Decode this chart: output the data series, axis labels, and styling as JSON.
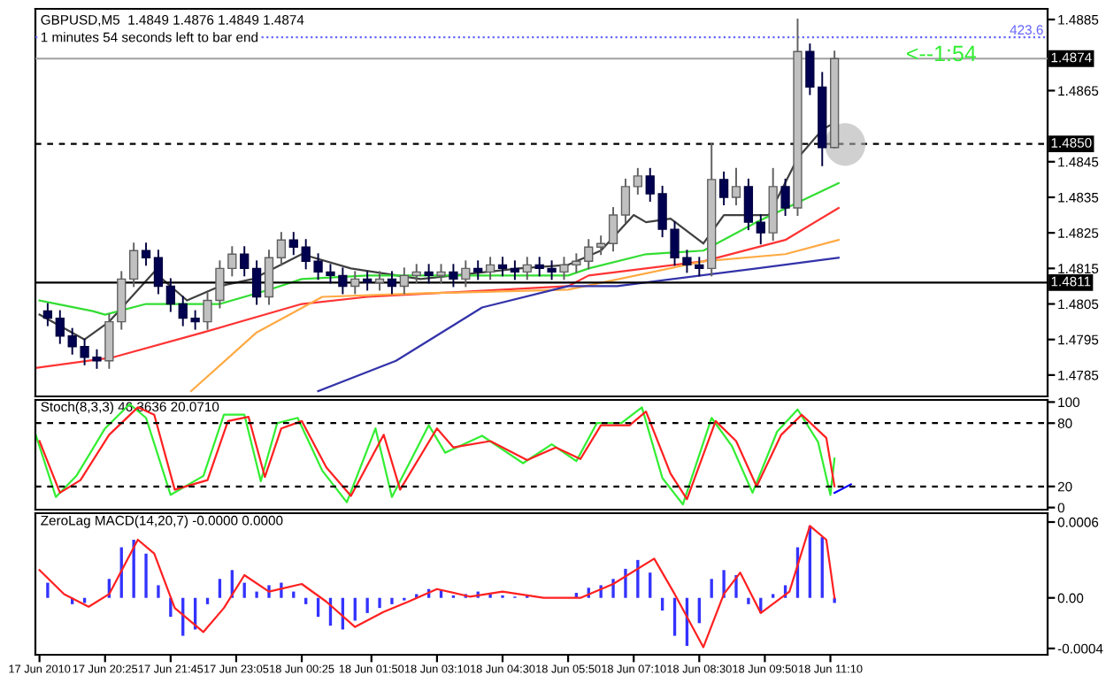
{
  "chart_data": [
    {
      "type": "candlestick",
      "title": "GBPUSD,M5  1.4849 1.4876 1.4849 1.4874",
      "subtitle": "1 minutes 54 seconds left to bar end",
      "annotations": [
        "<--1:54",
        {
          "text": "423.6",
          "x": "2010-06-18T15:30",
          "y": 1.488
        }
      ],
      "x": [
        "2010-06-17T19:15",
        "2010-06-17T19:30",
        "2010-06-17T19:45",
        "2010-06-17T20:00",
        "2010-06-17T20:15",
        "2010-06-17T20:30",
        "2010-06-17T20:45",
        "2010-06-17T21:00",
        "2010-06-17T21:15",
        "2010-06-17T21:30",
        "2010-06-17T21:45",
        "2010-06-17T22:00",
        "2010-06-17T22:15",
        "2010-06-17T22:30",
        "2010-06-17T22:45",
        "2010-06-17T23:00",
        "2010-06-17T23:15",
        "2010-06-17T23:30",
        "2010-06-17T23:45",
        "2010-06-18T00:00",
        "2010-06-18T00:15",
        "2010-06-18T00:30",
        "2010-06-18T00:45",
        "2010-06-18T01:00",
        "2010-06-18T01:15",
        "2010-06-18T01:30",
        "2010-06-18T01:45",
        "2010-06-18T02:00",
        "2010-06-18T02:15",
        "2010-06-18T02:30",
        "2010-06-18T02:45",
        "2010-06-18T03:00",
        "2010-06-18T03:15",
        "2010-06-18T03:30",
        "2010-06-18T03:45",
        "2010-06-18T04:00",
        "2010-06-18T04:15",
        "2010-06-18T04:30",
        "2010-06-18T04:45",
        "2010-06-18T05:00",
        "2010-06-18T05:15",
        "2010-06-18T05:30",
        "2010-06-18T05:45",
        "2010-06-18T06:00",
        "2010-06-18T06:15",
        "2010-06-18T06:30",
        "2010-06-18T06:45",
        "2010-06-18T07:00",
        "2010-06-18T07:15",
        "2010-06-18T07:30",
        "2010-06-18T07:45",
        "2010-06-18T08:00",
        "2010-06-18T08:15",
        "2010-06-18T08:30",
        "2010-06-18T08:45",
        "2010-06-18T09:00",
        "2010-06-18T09:15",
        "2010-06-18T09:30",
        "2010-06-18T09:45",
        "2010-06-18T10:00",
        "2010-06-18T10:15",
        "2010-06-18T10:30",
        "2010-06-18T10:45",
        "2010-06-18T11:00",
        "2010-06-18T11:15"
      ],
      "ohlc": [
        [
          1.4803,
          1.4805,
          1.4799,
          1.4801
        ],
        [
          1.4801,
          1.4803,
          1.4794,
          1.4796
        ],
        [
          1.4796,
          1.4798,
          1.4791,
          1.4793
        ],
        [
          1.4793,
          1.4795,
          1.4788,
          1.479
        ],
        [
          1.479,
          1.4792,
          1.4787,
          1.4789
        ],
        [
          1.4789,
          1.4802,
          1.4787,
          1.48
        ],
        [
          1.48,
          1.4814,
          1.4798,
          1.4812
        ],
        [
          1.4812,
          1.4822,
          1.481,
          1.482
        ],
        [
          1.482,
          1.4822,
          1.4816,
          1.4818
        ],
        [
          1.4818,
          1.482,
          1.4808,
          1.481
        ],
        [
          1.481,
          1.4812,
          1.4803,
          1.4805
        ],
        [
          1.4805,
          1.4807,
          1.4799,
          1.4801
        ],
        [
          1.4801,
          1.4803,
          1.4798,
          1.48
        ],
        [
          1.48,
          1.4808,
          1.4798,
          1.4806
        ],
        [
          1.4806,
          1.4817,
          1.4804,
          1.4815
        ],
        [
          1.4815,
          1.4821,
          1.4813,
          1.4819
        ],
        [
          1.4819,
          1.4821,
          1.4813,
          1.4815
        ],
        [
          1.4815,
          1.4817,
          1.4805,
          1.4807
        ],
        [
          1.4807,
          1.482,
          1.4805,
          1.4818
        ],
        [
          1.4818,
          1.4825,
          1.4816,
          1.4823
        ],
        [
          1.4823,
          1.4825,
          1.4819,
          1.4821
        ],
        [
          1.4821,
          1.4823,
          1.4815,
          1.4817
        ],
        [
          1.4817,
          1.4819,
          1.4812,
          1.4814
        ],
        [
          1.4814,
          1.4816,
          1.4811,
          1.4813
        ],
        [
          1.4813,
          1.4815,
          1.4808,
          1.481
        ],
        [
          1.481,
          1.4814,
          1.4808,
          1.4812
        ],
        [
          1.4812,
          1.4814,
          1.4809,
          1.4811
        ],
        [
          1.4811,
          1.4814,
          1.4809,
          1.4812
        ],
        [
          1.4812,
          1.4814,
          1.4808,
          1.481
        ],
        [
          1.481,
          1.4815,
          1.4808,
          1.4813
        ],
        [
          1.4813,
          1.4816,
          1.4811,
          1.4814
        ],
        [
          1.4814,
          1.4816,
          1.4811,
          1.4813
        ],
        [
          1.4813,
          1.4816,
          1.4811,
          1.4814
        ],
        [
          1.4814,
          1.4816,
          1.481,
          1.4812
        ],
        [
          1.4812,
          1.4817,
          1.481,
          1.4815
        ],
        [
          1.4815,
          1.4817,
          1.4812,
          1.4814
        ],
        [
          1.4814,
          1.4818,
          1.4812,
          1.4816
        ],
        [
          1.4816,
          1.4818,
          1.4813,
          1.4815
        ],
        [
          1.4815,
          1.4817,
          1.4812,
          1.4814
        ],
        [
          1.4814,
          1.4818,
          1.4812,
          1.4816
        ],
        [
          1.4816,
          1.4818,
          1.4813,
          1.4815
        ],
        [
          1.4815,
          1.4817,
          1.4812,
          1.4814
        ],
        [
          1.4814,
          1.4818,
          1.4812,
          1.4816
        ],
        [
          1.4816,
          1.4819,
          1.4814,
          1.4817
        ],
        [
          1.4817,
          1.4823,
          1.4815,
          1.4821
        ],
        [
          1.4821,
          1.4824,
          1.4819,
          1.4822
        ],
        [
          1.4822,
          1.4832,
          1.482,
          1.483
        ],
        [
          1.483,
          1.484,
          1.4828,
          1.4838
        ],
        [
          1.4838,
          1.4843,
          1.4836,
          1.4841
        ],
        [
          1.4841,
          1.4843,
          1.4834,
          1.4836
        ],
        [
          1.4836,
          1.4838,
          1.4824,
          1.4826
        ],
        [
          1.4826,
          1.4828,
          1.4816,
          1.4818
        ],
        [
          1.4818,
          1.482,
          1.4814,
          1.4816
        ],
        [
          1.4816,
          1.4818,
          1.4813,
          1.4815
        ],
        [
          1.4815,
          1.485,
          1.4813,
          1.484
        ],
        [
          1.484,
          1.4842,
          1.4833,
          1.4835
        ],
        [
          1.4835,
          1.4843,
          1.4833,
          1.4838
        ],
        [
          1.4838,
          1.484,
          1.4826,
          1.4828
        ],
        [
          1.4828,
          1.483,
          1.4822,
          1.4825
        ],
        [
          1.4825,
          1.4843,
          1.4823,
          1.4838
        ],
        [
          1.4838,
          1.484,
          1.483,
          1.4832
        ],
        [
          1.4832,
          1.4885,
          1.483,
          1.4876
        ],
        [
          1.4876,
          1.4878,
          1.4864,
          1.4866
        ],
        [
          1.4866,
          1.487,
          1.4844,
          1.4849
        ],
        [
          1.4849,
          1.4876,
          1.4849,
          1.4874
        ]
      ],
      "series": [
        {
          "type": "line",
          "color": "#404040",
          "x": [
            "2010-06-17T19:05",
            "2010-06-17T20:00",
            "2010-06-17T20:30",
            "2010-06-17T21:25",
            "2010-06-17T22:05",
            "2010-06-17T22:45",
            "2010-06-17T23:25",
            "2010-06-18T00:25",
            "2010-06-18T01:25",
            "2010-06-18T02:50",
            "2010-06-18T04:50",
            "2010-06-18T05:50",
            "2010-06-18T06:30",
            "2010-06-18T07:10",
            "2010-06-18T07:25",
            "2010-06-18T07:55",
            "2010-06-18T08:35",
            "2010-06-18T09:00",
            "2010-06-18T09:55",
            "2010-06-18T10:30",
            "2010-06-18T11:00",
            "2010-06-18T11:15"
          ],
          "values": [
            1.4802,
            1.4795,
            1.48,
            1.4814,
            1.4806,
            1.481,
            1.4812,
            1.4819,
            1.4815,
            1.4812,
            1.4815,
            1.4816,
            1.482,
            1.483,
            1.4828,
            1.4829,
            1.4822,
            1.483,
            1.483,
            1.4846,
            1.4854,
            1.4856
          ]
        },
        {
          "type": "line",
          "color": "#33dd33",
          "x": [
            "2010-06-17T19:05",
            "2010-06-17T20:10",
            "2010-06-17T20:25",
            "2010-06-17T21:15",
            "2010-06-17T22:45",
            "2010-06-17T23:45",
            "2010-06-18T00:25",
            "2010-06-18T01:45",
            "2010-06-18T05:50",
            "2010-06-18T06:15",
            "2010-06-18T07:25",
            "2010-06-18T08:35",
            "2010-06-18T09:40",
            "2010-06-18T11:20"
          ],
          "values": [
            1.4806,
            1.4803,
            1.4802,
            1.4805,
            1.4805,
            1.4809,
            1.4812,
            1.4813,
            1.4813,
            1.4815,
            1.4819,
            1.482,
            1.4828,
            1.4839
          ]
        },
        {
          "type": "line",
          "color": "#ff3333",
          "x": [
            "2010-06-17T19:00",
            "2010-06-17T20:35",
            "2010-06-17T22:25",
            "2010-06-18T00:25",
            "2010-06-18T01:45",
            "2010-06-18T05:50",
            "2010-06-18T06:15",
            "2010-06-18T08:35",
            "2010-06-18T10:15",
            "2010-06-18T11:20"
          ],
          "values": [
            1.4787,
            1.479,
            1.4797,
            1.4805,
            1.4807,
            1.481,
            1.4813,
            1.4817,
            1.4823,
            1.4832
          ]
        },
        {
          "type": "line",
          "color": "#ffaa44",
          "x": [
            "2010-06-17T22:10",
            "2010-06-17T23:30",
            "2010-06-18T00:50",
            "2010-06-18T02:55",
            "2010-06-18T05:50",
            "2010-06-18T08:35",
            "2010-06-18T10:15",
            "2010-06-18T11:20"
          ],
          "values": [
            1.47805,
            1.4797,
            1.4807,
            1.4808,
            1.4809,
            1.4817,
            1.4819,
            1.4823
          ]
        },
        {
          "type": "line",
          "color": "#3333aa",
          "x": [
            "2010-06-18T00:45",
            "2010-06-18T02:20",
            "2010-06-18T04:05",
            "2010-06-18T05:50",
            "2010-06-18T06:50",
            "2010-06-18T09:40",
            "2010-06-18T11:20"
          ],
          "values": [
            1.47805,
            1.4789,
            1.4804,
            1.481,
            1.481,
            1.4815,
            1.4818
          ]
        }
      ],
      "ref_lines": [
        {
          "axis": "y",
          "value": 1.488,
          "color": "#6666ff",
          "line_style": "dotted"
        },
        {
          "axis": "y",
          "value": 1.4874,
          "label": "1.4874",
          "color": "#a0a0a0",
          "line_style": "solid"
        },
        {
          "axis": "y",
          "value": 1.485,
          "label": "1.4850",
          "color": "#000000",
          "line_style": "dashed"
        },
        {
          "axis": "y",
          "value": 1.4811,
          "label": "1.4811",
          "color": "#000000",
          "line_style": "solid"
        }
      ],
      "xlim": [
        "2010-06-17T19:00",
        "2010-06-18T15:35"
      ],
      "ylim": [
        1.4779,
        1.4888
      ],
      "yticks": [
        1.4785,
        1.4795,
        1.4805,
        1.4815,
        1.4825,
        1.4835,
        1.4845,
        1.4865,
        1.4885
      ],
      "tick_labels": "y",
      "grid": false
    },
    {
      "type": "line",
      "title": "Stoch(8,3,3) 46.3636 20.0710",
      "series": [
        {
          "color": "#33ee33",
          "x": [
            "2010-06-17T19:00",
            "2010-06-17T19:25",
            "2010-06-17T19:50",
            "2010-06-17T20:25",
            "2010-06-17T20:55",
            "2010-06-17T21:15",
            "2010-06-17T21:45",
            "2010-06-17T22:25",
            "2010-06-17T22:50",
            "2010-06-17T23:15",
            "2010-06-17T23:35",
            "2010-06-17T23:55",
            "2010-06-18T00:20",
            "2010-06-18T00:50",
            "2010-06-18T01:20",
            "2010-06-18T01:55",
            "2010-06-18T02:15",
            "2010-06-18T03:00",
            "2010-06-18T03:20",
            "2010-06-18T04:05",
            "2010-06-18T04:55",
            "2010-06-18T05:30",
            "2010-06-18T06:00",
            "2010-06-18T06:25",
            "2010-06-18T06:55",
            "2010-06-18T07:20",
            "2010-06-18T07:45",
            "2010-06-18T08:10",
            "2010-06-18T08:45",
            "2010-06-18T09:10",
            "2010-06-18T09:35",
            "2010-06-18T10:05",
            "2010-06-18T10:30",
            "2010-06-18T10:55",
            "2010-06-18T11:10",
            "2010-06-18T11:15"
          ],
          "values": [
            70,
            10,
            30,
            75,
            98,
            85,
            12,
            30,
            88,
            88,
            25,
            80,
            85,
            35,
            5,
            75,
            10,
            78,
            52,
            68,
            42,
            60,
            44,
            80,
            80,
            95,
            28,
            3,
            85,
            58,
            14,
            72,
            93,
            62,
            12,
            46.36
          ]
        },
        {
          "color": "#ff2020",
          "x": [
            "2010-06-17T19:05",
            "2010-06-17T19:30",
            "2010-06-17T19:55",
            "2010-06-17T20:30",
            "2010-06-17T21:05",
            "2010-06-17T21:25",
            "2010-06-17T21:50",
            "2010-06-17T22:30",
            "2010-06-17T22:55",
            "2010-06-17T23:20",
            "2010-06-17T23:40",
            "2010-06-18T00:00",
            "2010-06-18T00:25",
            "2010-06-18T00:55",
            "2010-06-18T01:25",
            "2010-06-18T02:05",
            "2010-06-18T02:25",
            "2010-06-18T03:10",
            "2010-06-18T03:30",
            "2010-06-18T04:15",
            "2010-06-18T05:00",
            "2010-06-18T05:35",
            "2010-06-18T06:05",
            "2010-06-18T06:30",
            "2010-06-18T07:05",
            "2010-06-18T07:25",
            "2010-06-18T07:55",
            "2010-06-18T08:15",
            "2010-06-18T08:50",
            "2010-06-18T09:15",
            "2010-06-18T09:40",
            "2010-06-18T10:10",
            "2010-06-18T10:35",
            "2010-06-18T11:05",
            "2010-06-18T11:15"
          ],
          "values": [
            63,
            14,
            26,
            69,
            95,
            88,
            17,
            26,
            82,
            86,
            29,
            75,
            82,
            38,
            11,
            69,
            17,
            75,
            57,
            63,
            45,
            57,
            46,
            78,
            78,
            91,
            32,
            8,
            82,
            63,
            20,
            69,
            88,
            66,
            20.07
          ]
        },
        {
          "color": "#0000ff",
          "x": [
            "2010-06-18T11:15",
            "2010-06-18T11:35"
          ],
          "values": [
            14,
            22
          ]
        }
      ],
      "ref_lines": [
        {
          "axis": "y",
          "value": 20,
          "color": "#000000",
          "line_style": "dashed"
        },
        {
          "axis": "y",
          "value": 80,
          "color": "#000000",
          "line_style": "dashed"
        }
      ],
      "xlim": [
        "2010-06-17T19:00",
        "2010-06-18T15:35"
      ],
      "ylim": [
        -2,
        102
      ],
      "yticks": [
        0,
        20,
        80,
        100
      ],
      "tick_labels": "y",
      "grid": false
    },
    {
      "type": "bar",
      "title": "ZeroLag MACD(14,20,7) -0.0000 0.0000",
      "series": [
        {
          "type": "bar",
          "color": "#3333ff",
          "x": [
            "2010-06-17T19:15",
            "2010-06-17T19:30",
            "2010-06-17T19:45",
            "2010-06-17T20:00",
            "2010-06-17T20:15",
            "2010-06-17T20:30",
            "2010-06-17T20:45",
            "2010-06-17T21:00",
            "2010-06-17T21:15",
            "2010-06-17T21:30",
            "2010-06-17T21:45",
            "2010-06-17T22:00",
            "2010-06-17T22:15",
            "2010-06-17T22:30",
            "2010-06-17T22:45",
            "2010-06-17T23:00",
            "2010-06-17T23:15",
            "2010-06-17T23:30",
            "2010-06-17T23:45",
            "2010-06-18T00:00",
            "2010-06-18T00:15",
            "2010-06-18T00:30",
            "2010-06-18T00:45",
            "2010-06-18T01:00",
            "2010-06-18T01:15",
            "2010-06-18T01:30",
            "2010-06-18T01:45",
            "2010-06-18T02:00",
            "2010-06-18T02:15",
            "2010-06-18T02:30",
            "2010-06-18T02:45",
            "2010-06-18T03:00",
            "2010-06-18T03:15",
            "2010-06-18T03:30",
            "2010-06-18T03:45",
            "2010-06-18T04:00",
            "2010-06-18T04:15",
            "2010-06-18T04:30",
            "2010-06-18T04:45",
            "2010-06-18T05:00",
            "2010-06-18T05:15",
            "2010-06-18T05:30",
            "2010-06-18T05:45",
            "2010-06-18T06:00",
            "2010-06-18T06:15",
            "2010-06-18T06:30",
            "2010-06-18T06:45",
            "2010-06-18T07:00",
            "2010-06-18T07:15",
            "2010-06-18T07:30",
            "2010-06-18T07:45",
            "2010-06-18T08:00",
            "2010-06-18T08:15",
            "2010-06-18T08:30",
            "2010-06-18T08:45",
            "2010-06-18T09:00",
            "2010-06-18T09:15",
            "2010-06-18T09:30",
            "2010-06-18T09:45",
            "2010-06-18T10:00",
            "2010-06-18T10:15",
            "2010-06-18T10:30",
            "2010-06-18T10:45",
            "2010-06-18T11:00",
            "2010-06-18T11:15"
          ],
          "values": [
            0.00012,
            0.0,
            -5e-05,
            -4e-05,
            0.0,
            0.00015,
            0.0004,
            0.00046,
            0.00035,
            0.0001,
            -0.00015,
            -0.0003,
            -0.00025,
            -5e-05,
            0.00015,
            0.00022,
            0.00012,
            5e-05,
            0.0001,
            0.00012,
            5e-05,
            -5e-05,
            -0.00015,
            -0.00022,
            -0.00025,
            -0.00018,
            -0.00012,
            -8e-05,
            -5e-05,
            -2e-05,
            3e-05,
            7e-05,
            6e-05,
            2e-05,
            3e-05,
            5e-05,
            4e-05,
            2e-05,
            1e-05,
            2e-05,
            null,
            0.0,
            null,
            4e-05,
            8e-05,
            0.0001,
            0.00015,
            0.00023,
            0.0003,
            0.0002,
            -0.0001,
            -0.0003,
            -0.00038,
            -0.0002,
            0.00015,
            0.00022,
            0.00018,
            -5e-05,
            -0.00012,
            3e-05,
            0.0001,
            0.0004,
            0.00057,
            0.00048,
            -4e-05
          ]
        },
        {
          "type": "line",
          "color": "#ff2020",
          "x": [
            "2010-06-17T19:05",
            "2010-06-17T19:35",
            "2010-06-17T20:05",
            "2010-06-17T20:30",
            "2010-06-17T21:05",
            "2010-06-17T21:25",
            "2010-06-17T21:50",
            "2010-06-17T22:25",
            "2010-06-17T22:50",
            "2010-06-17T23:15",
            "2010-06-17T23:45",
            "2010-06-18T00:25",
            "2010-06-18T00:55",
            "2010-06-18T01:30",
            "2010-06-18T02:05",
            "2010-06-18T02:35",
            "2010-06-18T03:10",
            "2010-06-18T03:50",
            "2010-06-18T04:30",
            "2010-06-18T05:20",
            "2010-06-18T06:05",
            "2010-06-18T06:45",
            "2010-06-18T07:35",
            "2010-06-18T08:00",
            "2010-06-18T08:35",
            "2010-06-18T09:00",
            "2010-06-18T09:20",
            "2010-06-18T09:45",
            "2010-06-18T10:20",
            "2010-06-18T10:45",
            "2010-06-18T11:05",
            "2010-06-18T11:15"
          ],
          "values": [
            0.00022,
            3e-05,
            -7e-05,
            3e-05,
            0.00046,
            0.00035,
            -8e-05,
            -0.00027,
            -8e-05,
            0.00018,
            5e-05,
            0.00011,
            -3e-05,
            -0.00023,
            -0.00011,
            -3e-05,
            7e-05,
            1e-05,
            5e-05,
            0.0,
            0.0,
            0.00011,
            0.00031,
            3e-05,
            -0.00039,
            3e-05,
            0.0002,
            -0.00012,
            5e-05,
            0.00057,
            0.00046,
            0.0
          ]
        }
      ],
      "xlim": [
        "2010-06-17T19:00",
        "2010-06-18T15:35"
      ],
      "ylim": [
        -0.00045,
        0.00067
      ],
      "yticks": [
        0.0006,
        {
          "value": 0,
          "label": "0.00"
        },
        -0.0004
      ],
      "xticks": [
        {
          "value": "2010-06-17T19:05",
          "label": "17 Jun 2010"
        },
        {
          "value": "2010-06-17T20:25",
          "label": "17 Jun 20:25"
        },
        {
          "value": "2010-06-17T21:45",
          "label": "17 Jun 21:45"
        },
        {
          "value": "2010-06-17T23:05",
          "label": "17 Jun 23:05"
        },
        {
          "value": "2010-06-18T00:25",
          "label": "18 Jun 00:25"
        },
        {
          "value": "2010-06-18T01:50",
          "label": "18 Jun 01:50"
        },
        {
          "value": "2010-06-18T03:10",
          "label": "18 Jun 03:10"
        },
        {
          "value": "2010-06-18T04:30",
          "label": "18 Jun 04:30"
        },
        {
          "value": "2010-06-18T05:50",
          "label": "18 Jun 05:50"
        },
        {
          "value": "2010-06-18T07:10",
          "label": "18 Jun 07:10"
        },
        {
          "value": "2010-06-18T08:30",
          "label": "18 Jun 08:30"
        },
        {
          "value": "2010-06-18T09:50",
          "label": "18 Jun 09:50"
        },
        {
          "value": "2010-06-18T11:10",
          "label": "18 Jun 11:10"
        }
      ],
      "grid": false
    }
  ]
}
